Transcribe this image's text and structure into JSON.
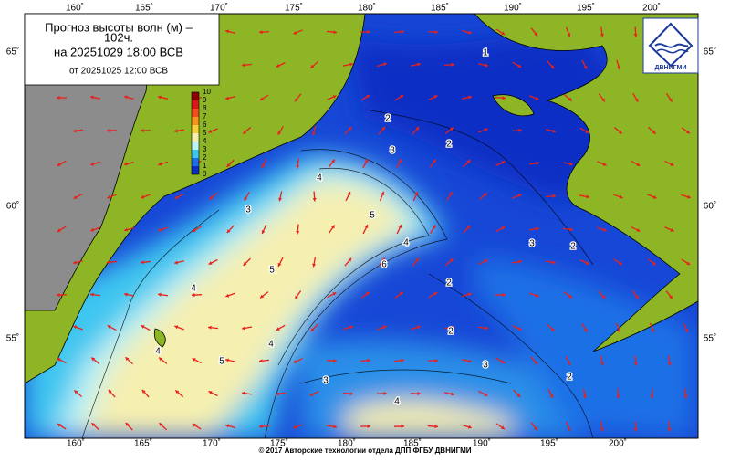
{
  "title": {
    "line1": "Прогноз высоты волн (м) –",
    "line2": "102ч.",
    "line3": "на 20251029 18:00 ВСВ",
    "line4": "от 20251025 12:00 ВСВ"
  },
  "colorbar": {
    "ticks": [
      10,
      9,
      8,
      7,
      6,
      5,
      4,
      3,
      2,
      1,
      0
    ],
    "colors": [
      "#8b0000",
      "#d7191c",
      "#f04e1c",
      "#f7931e",
      "#f6d13a",
      "#f5efb0",
      "#bdf3f5",
      "#3ec6f0",
      "#1e6fe6",
      "#0b2fc4"
    ]
  },
  "lon_labels": [
    "160˚",
    "165˚",
    "170˚",
    "175˚",
    "180˚",
    "185˚",
    "190˚",
    "195˚",
    "200˚"
  ],
  "lat_labels": [
    "65˚",
    "60˚",
    "55˚"
  ],
  "contour_labels": [
    1,
    2,
    3,
    4,
    5,
    4,
    2,
    3,
    3,
    2,
    6,
    5,
    4,
    2,
    2,
    3,
    2,
    4,
    5,
    4,
    3,
    4
  ],
  "logo": "ДВНИГМИ",
  "footer": "© 2017 Авторские технологии отдела ДПП ФГБУ ДВНИГМИ"
}
